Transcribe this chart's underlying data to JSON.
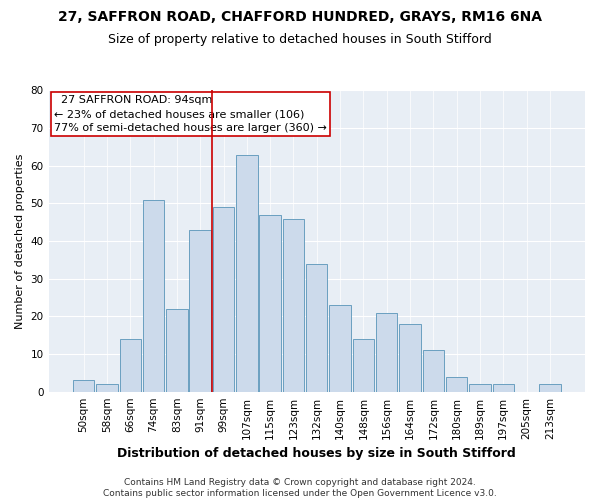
{
  "title1": "27, SAFFRON ROAD, CHAFFORD HUNDRED, GRAYS, RM16 6NA",
  "title2": "Size of property relative to detached houses in South Stifford",
  "xlabel": "Distribution of detached houses by size in South Stifford",
  "ylabel": "Number of detached properties",
  "footnote": "Contains HM Land Registry data © Crown copyright and database right 2024.\nContains public sector information licensed under the Open Government Licence v3.0.",
  "bins": [
    "50sqm",
    "58sqm",
    "66sqm",
    "74sqm",
    "83sqm",
    "91sqm",
    "99sqm",
    "107sqm",
    "115sqm",
    "123sqm",
    "132sqm",
    "140sqm",
    "148sqm",
    "156sqm",
    "164sqm",
    "172sqm",
    "180sqm",
    "189sqm",
    "197sqm",
    "205sqm",
    "213sqm"
  ],
  "counts": [
    3,
    2,
    14,
    51,
    22,
    43,
    49,
    63,
    47,
    46,
    34,
    23,
    14,
    21,
    18,
    11,
    4,
    2,
    2,
    0,
    2
  ],
  "bar_color": "#ccdaeb",
  "bar_edge_color": "#6a9fc0",
  "vline_x": 5.5,
  "vline_color": "#cc0000",
  "annotation_text": "  27 SAFFRON ROAD: 94sqm\n← 23% of detached houses are smaller (106)\n77% of semi-detached houses are larger (360) →",
  "annotation_box_color": "white",
  "annotation_box_edge_color": "#cc0000",
  "ylim": [
    0,
    80
  ],
  "yticks": [
    0,
    10,
    20,
    30,
    40,
    50,
    60,
    70,
    80
  ],
  "bg_color": "#e8eef5",
  "grid_color": "white",
  "title1_fontsize": 10,
  "title2_fontsize": 9,
  "xlabel_fontsize": 9,
  "ylabel_fontsize": 8,
  "annotation_fontsize": 8,
  "footnote_fontsize": 6.5,
  "tick_fontsize": 7.5
}
